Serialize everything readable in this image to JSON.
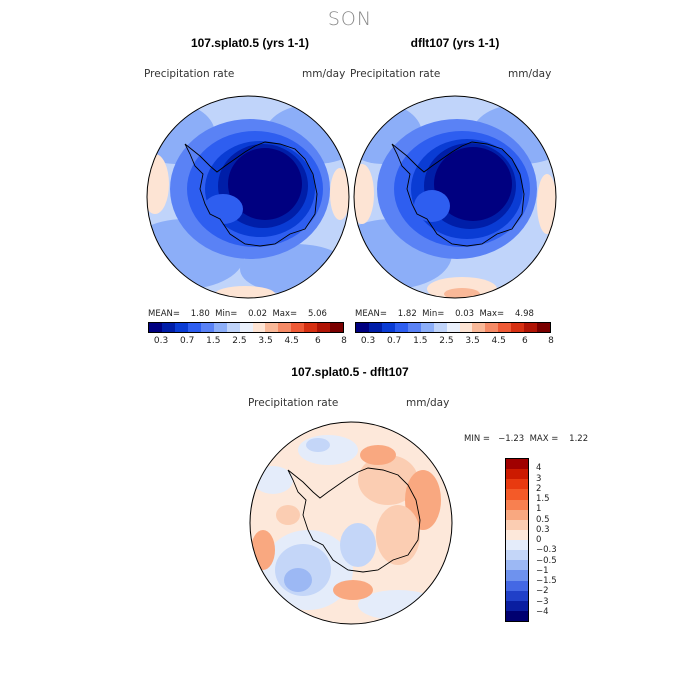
{
  "figure": {
    "season_title": "SON"
  },
  "panels": {
    "left": {
      "title": "107.splat0.5 (yrs 1-1)",
      "variable_label": "Precipitation rate",
      "units": "mm/day",
      "stats": "MEAN=    1.80  Min=    0.02  Max=    5.06"
    },
    "right": {
      "title": "dflt107 (yrs 1-1)",
      "variable_label": "Precipitation rate",
      "units": "mm/day",
      "stats": "MEAN=    1.82  Min=    0.03  Max=    4.98"
    },
    "diff": {
      "title": "107.splat0.5 - dflt107",
      "variable_label": "Precipitation rate",
      "units": "mm/day",
      "stats": "MIN =   −1.23  MAX =    1.22"
    }
  },
  "colorbars": {
    "abs": {
      "tick_labels": [
        "0.3",
        "0.7",
        "1.5",
        "2.5",
        "3.5",
        "4.5",
        "6",
        "8"
      ],
      "colors": [
        "#000080",
        "#001ea8",
        "#0a3cd4",
        "#2e5ef0",
        "#5a82f5",
        "#8caef8",
        "#c0d4fa",
        "#eaf0fb",
        "#fde4d4",
        "#f9b898",
        "#f58a66",
        "#ee5a36",
        "#d63012",
        "#b01405",
        "#7a0000"
      ]
    },
    "diff": {
      "tick_labels": [
        "4",
        "3",
        "2",
        "1.5",
        "1",
        "0.5",
        "0.3",
        "0",
        "−0.3",
        "−0.5",
        "−1",
        "−1.5",
        "−2",
        "−3",
        "−4"
      ],
      "colors": [
        "#a00000",
        "#cc1a00",
        "#e83a10",
        "#f45a28",
        "#f88050",
        "#f9a880",
        "#fbcdb2",
        "#fde8da",
        "#e4ecfa",
        "#c4d6f8",
        "#9cb8f4",
        "#6e92ee",
        "#4468e4",
        "#2040c8",
        "#0a1ea0",
        "#000070"
      ]
    }
  }
}
